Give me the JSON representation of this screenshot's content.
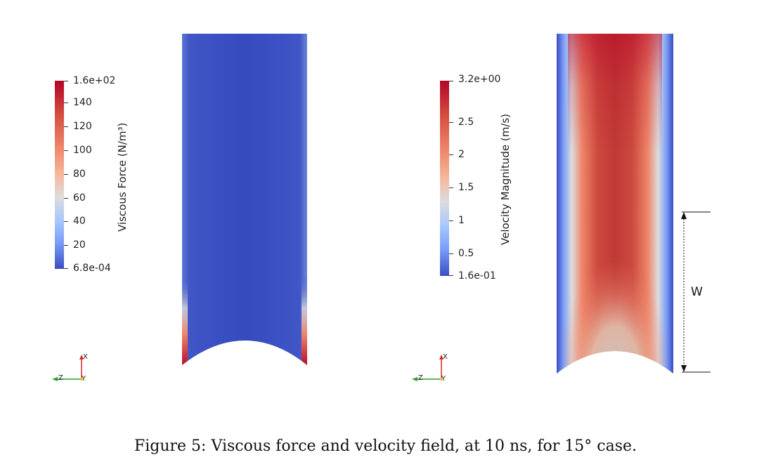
{
  "caption": "Figure 5: Viscous force and velocity field, at 10 ns, for 15° case.",
  "left_panel": {
    "colorbar": {
      "title": "Viscous Force (N/m³)",
      "labels": [
        "1.6e+02",
        "140",
        "120",
        "100",
        "80",
        "60",
        "40",
        "20",
        "6.8e-04"
      ]
    },
    "triad": {
      "x": "X",
      "y": "Y",
      "z": "Z"
    }
  },
  "right_panel": {
    "colorbar": {
      "title": "Velocity Magnitude (m/s)",
      "labels": [
        "3.2e+00",
        "2.5",
        "2",
        "1.5",
        "1",
        "0.5",
        "1.6e-01"
      ]
    },
    "triad": {
      "x": "X",
      "y": "Y",
      "z": "Z"
    },
    "dimension_label": "W"
  },
  "colors": {
    "low": "#3b4cc0",
    "mid": "#dddcdc",
    "high": "#b40426"
  }
}
